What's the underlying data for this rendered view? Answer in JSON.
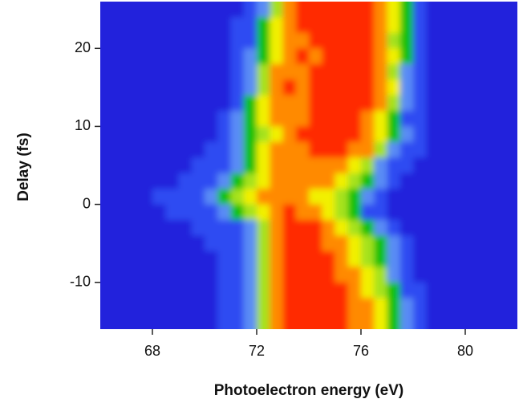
{
  "chart_data": {
    "type": "contour",
    "x_label": "Photoelectron energy (eV)",
    "y_label": "Delay (fs)",
    "xlim": [
      66,
      82
    ],
    "ylim": [
      -16,
      26
    ],
    "xticks": [
      68,
      72,
      76,
      80
    ],
    "yticks": [
      -10,
      0,
      10,
      20
    ],
    "cell_width": 0.5,
    "cell_height": 2,
    "colors": [
      "#2222dc",
      "#2f4cf2",
      "#5a8cf5",
      "#10c010",
      "#a6e21a",
      "#f2f000",
      "#ff8a00",
      "#ff2a00"
    ],
    "x": [
      66.25,
      66.75,
      67.25,
      67.75,
      68.25,
      68.75,
      69.25,
      69.75,
      70.25,
      70.75,
      71.25,
      71.75,
      72.25,
      72.75,
      73.25,
      73.75,
      74.25,
      74.75,
      75.25,
      75.75,
      76.25,
      76.75,
      77.25,
      77.75,
      78.25,
      78.75,
      79.25,
      79.75,
      80.25,
      80.75,
      81.25,
      81.75
    ],
    "y": [
      25,
      23,
      21,
      19,
      17,
      15,
      13,
      11,
      9,
      7,
      5,
      3,
      1,
      -1,
      -3,
      -5,
      -7,
      -9,
      -11,
      -13,
      -15
    ],
    "z": [
      [
        0,
        0,
        0,
        0,
        0,
        0,
        0,
        0,
        0,
        0,
        0,
        1,
        2,
        4,
        6,
        7,
        7,
        7,
        7,
        7,
        7,
        6,
        5,
        3,
        1,
        0,
        0,
        0,
        0,
        0,
        0,
        0
      ],
      [
        0,
        0,
        0,
        0,
        0,
        0,
        0,
        0,
        0,
        0,
        1,
        1,
        3,
        5,
        6,
        7,
        7,
        7,
        7,
        7,
        7,
        6,
        5,
        3,
        1,
        0,
        0,
        0,
        0,
        0,
        0,
        0
      ],
      [
        0,
        0,
        0,
        0,
        0,
        0,
        0,
        0,
        0,
        0,
        1,
        1,
        3,
        5,
        6,
        6,
        7,
        7,
        7,
        7,
        7,
        6,
        4,
        3,
        1,
        0,
        0,
        0,
        0,
        0,
        0,
        0
      ],
      [
        0,
        0,
        0,
        0,
        0,
        0,
        0,
        0,
        0,
        0,
        1,
        2,
        3,
        5,
        6,
        7,
        6,
        7,
        7,
        7,
        7,
        6,
        5,
        3,
        1,
        0,
        0,
        0,
        0,
        0,
        0,
        0
      ],
      [
        0,
        0,
        0,
        0,
        0,
        0,
        0,
        0,
        0,
        0,
        1,
        2,
        4,
        6,
        6,
        6,
        7,
        7,
        7,
        7,
        7,
        6,
        4,
        2,
        1,
        0,
        0,
        0,
        0,
        0,
        0,
        0
      ],
      [
        0,
        0,
        0,
        0,
        0,
        0,
        0,
        0,
        0,
        0,
        1,
        2,
        4,
        6,
        7,
        6,
        7,
        7,
        7,
        7,
        7,
        6,
        5,
        2,
        1,
        0,
        0,
        0,
        0,
        0,
        0,
        0
      ],
      [
        0,
        0,
        0,
        0,
        0,
        0,
        0,
        0,
        0,
        0,
        1,
        3,
        5,
        6,
        6,
        6,
        7,
        7,
        7,
        7,
        7,
        6,
        4,
        2,
        1,
        0,
        0,
        0,
        0,
        0,
        0,
        0
      ],
      [
        0,
        0,
        0,
        0,
        0,
        0,
        0,
        0,
        0,
        1,
        2,
        3,
        5,
        6,
        6,
        6,
        7,
        7,
        7,
        7,
        6,
        5,
        3,
        1,
        1,
        0,
        0,
        0,
        0,
        0,
        0,
        0
      ],
      [
        0,
        0,
        0,
        0,
        0,
        0,
        0,
        0,
        0,
        1,
        2,
        3,
        4,
        5,
        6,
        7,
        7,
        7,
        7,
        7,
        6,
        5,
        3,
        2,
        1,
        0,
        0,
        0,
        0,
        0,
        0,
        0
      ],
      [
        0,
        0,
        0,
        0,
        0,
        0,
        0,
        0,
        1,
        1,
        2,
        3,
        5,
        6,
        6,
        6,
        7,
        7,
        7,
        6,
        6,
        4,
        2,
        1,
        1,
        0,
        0,
        0,
        0,
        0,
        0,
        0
      ],
      [
        0,
        0,
        0,
        0,
        0,
        0,
        0,
        1,
        1,
        1,
        2,
        3,
        5,
        6,
        6,
        6,
        6,
        6,
        6,
        5,
        4,
        2,
        1,
        1,
        0,
        0,
        0,
        0,
        0,
        0,
        0,
        0
      ],
      [
        0,
        0,
        0,
        0,
        0,
        0,
        1,
        1,
        1,
        2,
        3,
        4,
        5,
        6,
        6,
        6,
        6,
        6,
        5,
        4,
        3,
        2,
        1,
        0,
        0,
        0,
        0,
        0,
        0,
        0,
        0,
        0
      ],
      [
        0,
        0,
        0,
        0,
        1,
        1,
        1,
        1,
        2,
        3,
        4,
        5,
        6,
        6,
        6,
        6,
        5,
        5,
        4,
        3,
        2,
        1,
        0,
        0,
        0,
        0,
        0,
        0,
        0,
        0,
        0,
        0
      ],
      [
        0,
        0,
        0,
        0,
        0,
        1,
        1,
        1,
        1,
        2,
        3,
        4,
        5,
        6,
        7,
        6,
        6,
        5,
        4,
        3,
        1,
        1,
        0,
        0,
        0,
        0,
        0,
        0,
        0,
        0,
        0,
        0
      ],
      [
        0,
        0,
        0,
        0,
        0,
        0,
        0,
        1,
        1,
        1,
        1,
        2,
        4,
        6,
        7,
        7,
        7,
        6,
        5,
        4,
        3,
        2,
        1,
        0,
        0,
        0,
        0,
        0,
        0,
        0,
        0,
        0
      ],
      [
        0,
        0,
        0,
        0,
        0,
        0,
        0,
        0,
        1,
        1,
        1,
        2,
        4,
        6,
        7,
        7,
        7,
        6,
        6,
        5,
        4,
        3,
        2,
        1,
        0,
        0,
        0,
        0,
        0,
        0,
        0,
        0
      ],
      [
        0,
        0,
        0,
        0,
        0,
        0,
        0,
        0,
        0,
        1,
        1,
        2,
        4,
        6,
        7,
        7,
        7,
        7,
        6,
        5,
        4,
        3,
        2,
        1,
        0,
        0,
        0,
        0,
        0,
        0,
        0,
        0
      ],
      [
        0,
        0,
        0,
        0,
        0,
        0,
        0,
        0,
        0,
        1,
        1,
        2,
        4,
        6,
        7,
        7,
        7,
        7,
        6,
        6,
        5,
        4,
        2,
        1,
        0,
        0,
        0,
        0,
        0,
        0,
        0,
        0
      ],
      [
        0,
        0,
        0,
        0,
        0,
        0,
        0,
        0,
        0,
        1,
        1,
        2,
        4,
        6,
        7,
        7,
        7,
        7,
        7,
        6,
        5,
        4,
        3,
        1,
        1,
        0,
        0,
        0,
        0,
        0,
        0,
        0
      ],
      [
        0,
        0,
        0,
        0,
        0,
        0,
        0,
        0,
        0,
        1,
        1,
        2,
        4,
        6,
        7,
        7,
        7,
        7,
        7,
        6,
        6,
        5,
        3,
        2,
        1,
        0,
        0,
        0,
        0,
        0,
        0,
        0
      ],
      [
        0,
        0,
        0,
        0,
        0,
        0,
        0,
        0,
        0,
        1,
        1,
        2,
        4,
        6,
        7,
        7,
        7,
        7,
        7,
        6,
        6,
        5,
        3,
        2,
        1,
        0,
        0,
        0,
        0,
        0,
        0,
        0
      ]
    ]
  }
}
